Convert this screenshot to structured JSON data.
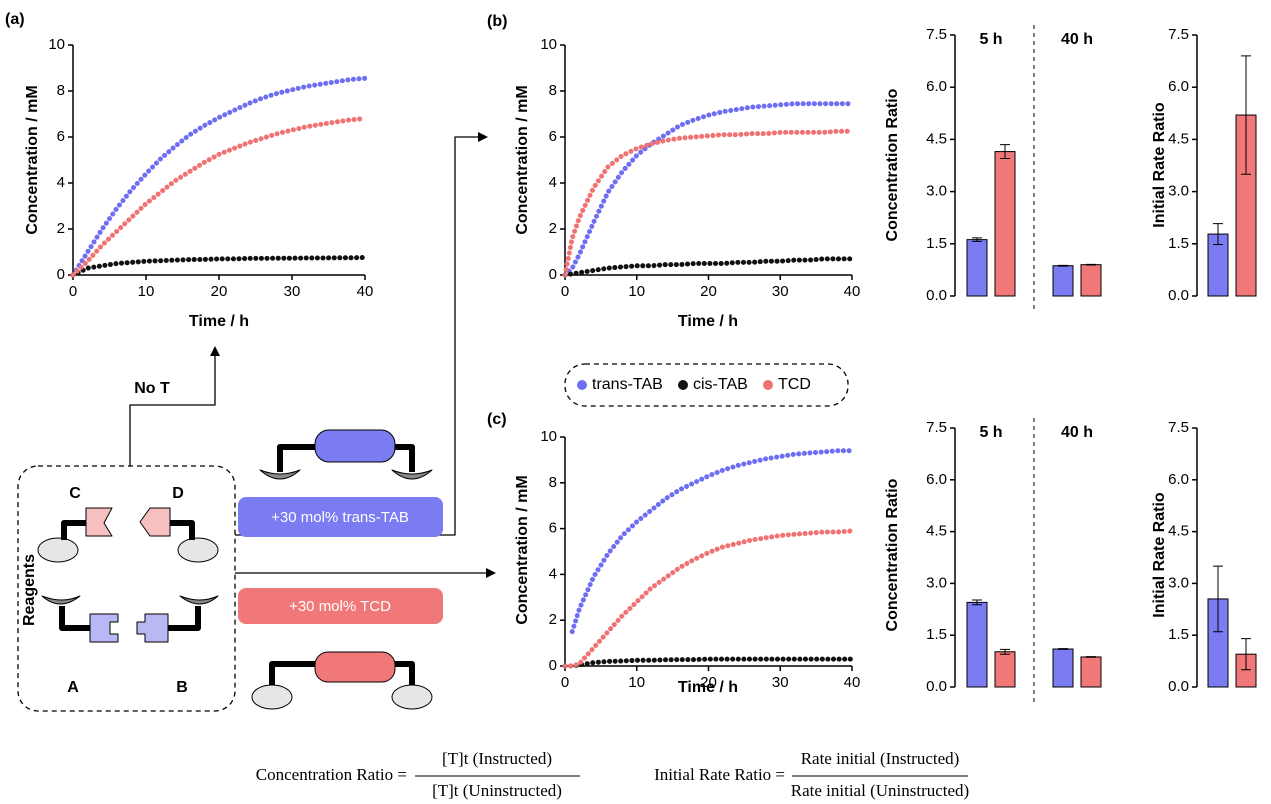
{
  "chart_data": [
    {
      "type": "line",
      "panel": "(a)",
      "xlabel": "Time / h",
      "ylabel": "Concentration / mM",
      "x": [
        0,
        2,
        4,
        6,
        8,
        10,
        12,
        14,
        16,
        18,
        20,
        22,
        24,
        26,
        28,
        30,
        32,
        34,
        36,
        38,
        40
      ],
      "xlim": [
        0,
        40
      ],
      "xticks": [
        0,
        10,
        20,
        30,
        40
      ],
      "ylim": [
        0,
        10
      ],
      "yticks": [
        0,
        2,
        4,
        6,
        8,
        10
      ],
      "series": [
        {
          "color": "#6e6ef2",
          "values": [
            0,
            1.0,
            2.0,
            2.9,
            3.7,
            4.4,
            5.05,
            5.6,
            6.1,
            6.5,
            6.85,
            7.15,
            7.45,
            7.7,
            7.9,
            8.05,
            8.2,
            8.3,
            8.4,
            8.5,
            8.55
          ]
        },
        {
          "color": "#111111",
          "values": [
            0,
            0.3,
            0.4,
            0.5,
            0.55,
            0.6,
            0.62,
            0.65,
            0.67,
            0.68,
            0.7,
            0.7,
            0.72,
            0.72,
            0.73,
            0.73,
            0.74,
            0.74,
            0.75,
            0.75,
            0.76
          ]
        },
        {
          "color": "#f07272",
          "values": [
            0,
            0.6,
            1.3,
            1.9,
            2.5,
            3.1,
            3.6,
            4.1,
            4.5,
            4.9,
            5.25,
            5.5,
            5.75,
            5.95,
            6.15,
            6.3,
            6.45,
            6.55,
            6.65,
            6.75,
            6.8
          ]
        }
      ]
    },
    {
      "type": "line",
      "panel": "(b)",
      "xlabel": "Time / h",
      "ylabel": "Concentration / mM",
      "x": [
        0,
        1,
        2,
        4,
        6,
        8,
        10,
        12,
        14,
        16,
        18,
        20,
        22,
        24,
        26,
        28,
        30,
        32,
        34,
        36,
        38,
        40
      ],
      "xlim": [
        0,
        40
      ],
      "xticks": [
        0,
        10,
        20,
        30,
        40
      ],
      "ylim": [
        0,
        10
      ],
      "yticks": [
        0,
        2,
        4,
        6,
        8,
        10
      ],
      "series": [
        {
          "color": "#6e6ef2",
          "values": [
            0,
            0.3,
            0.9,
            2.3,
            3.6,
            4.5,
            5.2,
            5.7,
            6.1,
            6.5,
            6.75,
            6.95,
            7.1,
            7.2,
            7.3,
            7.35,
            7.4,
            7.45,
            7.45,
            7.45,
            7.45,
            7.45
          ]
        },
        {
          "color": "#111111",
          "values": [
            0,
            0.05,
            0.1,
            0.2,
            0.3,
            0.35,
            0.4,
            0.4,
            0.45,
            0.45,
            0.5,
            0.5,
            0.5,
            0.55,
            0.55,
            0.6,
            0.6,
            0.65,
            0.65,
            0.7,
            0.7,
            0.7
          ]
        },
        {
          "color": "#f07272",
          "values": [
            0,
            1.6,
            2.5,
            3.8,
            4.7,
            5.2,
            5.5,
            5.7,
            5.85,
            5.95,
            6.0,
            6.05,
            6.1,
            6.1,
            6.15,
            6.15,
            6.2,
            6.2,
            6.2,
            6.2,
            6.25,
            6.25
          ]
        }
      ]
    },
    {
      "type": "bar",
      "ylabel": "Concentration Ratio",
      "categories": [
        "5 h",
        "40 h"
      ],
      "divider": true,
      "ylim": [
        0,
        7.5
      ],
      "yticks": [
        {
          "value": 0,
          "label": "0.0"
        },
        1.5,
        {
          "value": 3,
          "label": "3.0"
        },
        4.5,
        {
          "value": 6,
          "label": "6.0"
        },
        7.5
      ],
      "series": [
        {
          "color": "#7b7bf2",
          "values": [
            1.62,
            0.87
          ],
          "errors": [
            0.05,
            0.01
          ]
        },
        {
          "color": "#f07878",
          "values": [
            4.15,
            0.9
          ],
          "errors": [
            0.2,
            0.01
          ]
        }
      ]
    },
    {
      "type": "bar",
      "ylabel": "Initial Rate Ratio",
      "categories": [
        null
      ],
      "divider": false,
      "ylim": [
        0,
        7.5
      ],
      "yticks": [
        {
          "value": 0,
          "label": "0.0"
        },
        1.5,
        {
          "value": 3,
          "label": "3.0"
        },
        4.5,
        {
          "value": 6,
          "label": "6.0"
        },
        7.5
      ],
      "series": [
        {
          "color": "#7b7bf2",
          "values": [
            1.78
          ],
          "errors": [
            0.3
          ]
        },
        {
          "color": "#f07878",
          "values": [
            5.2
          ],
          "errors": [
            1.7
          ]
        }
      ]
    },
    {
      "type": "line",
      "panel": "(c)",
      "xlabel": "Time / h",
      "ylabel": "Concentration / mM",
      "x": [
        0,
        1,
        2,
        4,
        6,
        8,
        10,
        12,
        14,
        16,
        18,
        20,
        22,
        24,
        26,
        28,
        30,
        32,
        34,
        36,
        38,
        40
      ],
      "xlim": [
        0,
        40
      ],
      "xticks": [
        0,
        10,
        20,
        30,
        40
      ],
      "ylim": [
        0,
        10
      ],
      "yticks": [
        0,
        2,
        4,
        6,
        8,
        10
      ],
      "series": [
        {
          "color": "#6e6ef2",
          "values": [
            null,
            1.5,
            2.5,
            3.9,
            4.9,
            5.7,
            6.3,
            6.8,
            7.3,
            7.7,
            8.0,
            8.3,
            8.55,
            8.75,
            8.9,
            9.05,
            9.15,
            9.25,
            9.3,
            9.35,
            9.4,
            9.4
          ]
        },
        {
          "color": "#111111",
          "values": [
            0,
            0,
            0.05,
            0.15,
            0.2,
            0.22,
            0.25,
            0.25,
            0.27,
            0.28,
            0.28,
            0.3,
            0.3,
            0.3,
            0.3,
            0.3,
            0.3,
            0.3,
            0.3,
            0.3,
            0.3,
            0.3
          ]
        },
        {
          "color": "#f07272",
          "values": [
            0,
            0,
            0.1,
            0.8,
            1.5,
            2.2,
            2.8,
            3.4,
            3.85,
            4.3,
            4.65,
            4.95,
            5.2,
            5.35,
            5.5,
            5.6,
            5.7,
            5.75,
            5.8,
            5.85,
            5.85,
            5.9
          ]
        }
      ]
    },
    {
      "type": "bar",
      "ylabel": "Concentration Ratio",
      "categories": [
        "5 h",
        "40 h"
      ],
      "divider": true,
      "ylim": [
        0,
        7.5
      ],
      "yticks": [
        {
          "value": 0,
          "label": "0.0"
        },
        1.5,
        {
          "value": 3,
          "label": "3.0"
        },
        4.5,
        {
          "value": 6,
          "label": "6.0"
        },
        7.5
      ],
      "series": [
        {
          "color": "#7b7bf2",
          "values": [
            2.45,
            1.1
          ],
          "errors": [
            0.07,
            0.01
          ]
        },
        {
          "color": "#f07878",
          "values": [
            1.02,
            0.87
          ],
          "errors": [
            0.07,
            0.01
          ]
        }
      ]
    },
    {
      "type": "bar",
      "ylabel": "Initial Rate Ratio",
      "categories": [
        null
      ],
      "divider": false,
      "ylim": [
        0,
        7.5
      ],
      "yticks": [
        {
          "value": 0,
          "label": "0.0"
        },
        1.5,
        {
          "value": 3,
          "label": "3.0"
        },
        4.5,
        {
          "value": 6,
          "label": "6.0"
        },
        7.5
      ],
      "series": [
        {
          "color": "#7b7bf2",
          "values": [
            2.55
          ],
          "errors": [
            0.95
          ]
        },
        {
          "color": "#f07878",
          "values": [
            0.95
          ],
          "errors": [
            0.45
          ]
        }
      ]
    }
  ],
  "legend": {
    "items": [
      {
        "name": "trans-TAB",
        "color": "#6e6ef2"
      },
      {
        "name": "cis-TAB",
        "color": "#111111"
      },
      {
        "name": "TCD",
        "color": "#f07272"
      }
    ]
  },
  "diagram": {
    "no_t": "No T",
    "reagents": "Reagents",
    "pieces": {
      "c": "C",
      "d": "D",
      "a": "A",
      "b": "B"
    },
    "add_trans": "+30 mol% trans-TAB",
    "add_tcd": "+30 mol% TCD"
  },
  "formulas": [
    {
      "lhs": "Concentration Ratio =",
      "numerator": "[T]t (Instructed)",
      "denominator": "[T]t (Uninstructed)"
    },
    {
      "lhs": "Initial Rate Ratio =",
      "numerator": "Rate initial (Instructed)",
      "denominator": "Rate initial (Uninstructed)"
    }
  ]
}
